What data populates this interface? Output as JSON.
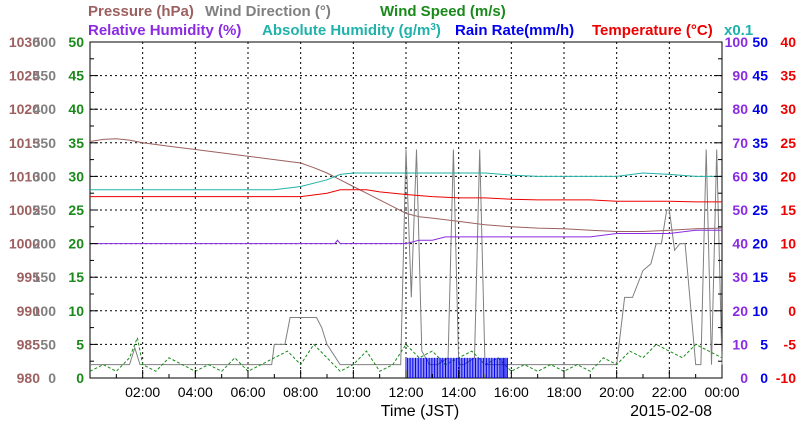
{
  "chart_data": {
    "type": "line",
    "title": "",
    "xlabel": "Time (JST)",
    "date_label": "2015-02-08",
    "x_ticks": [
      "02:00",
      "04:00",
      "06:00",
      "08:00",
      "10:00",
      "12:00",
      "14:00",
      "16:00",
      "18:00",
      "20:00",
      "22:00",
      "00:00"
    ],
    "x_range_hours": [
      0,
      24
    ],
    "grid": true,
    "legend_placement": "top",
    "legend": [
      {
        "key": "pressure",
        "text": "Pressure (hPa)",
        "color": "#9c6060"
      },
      {
        "key": "wind_dir",
        "text": "Wind Direction (°)",
        "color": "#808080"
      },
      {
        "key": "wind_speed",
        "text": "Wind Speed (m/s)",
        "color": "#1a8a1a"
      },
      {
        "key": "humidity",
        "text": "Relative Humidity (%)",
        "color": "#8a2be2"
      },
      {
        "key": "abs_humidity",
        "text": "Absolute Humidity (g/m",
        "sup": "3",
        "close": ")",
        "color": "#20b2aa"
      },
      {
        "key": "rain",
        "text": "Rain Rate(mm/h)",
        "color": "#0000ee"
      },
      {
        "key": "temperature",
        "text": "Temperature (°C)",
        "color": "#ee0000"
      },
      {
        "key": "multiplier",
        "text": "x0.1",
        "color": "#20b2aa"
      }
    ],
    "axes": {
      "pressure": {
        "color": "#9c6060",
        "ticks": [
          "1030",
          "1025",
          "1020",
          "1015",
          "1010",
          "1005",
          "1000",
          "995",
          "990",
          "985",
          "980"
        ],
        "range": [
          980,
          1030
        ]
      },
      "wind_dir": {
        "color": "#808080",
        "ticks": [
          "500",
          "450",
          "400",
          "350",
          "300",
          "250",
          "200",
          "150",
          "100",
          "50",
          "0"
        ],
        "range": [
          0,
          500
        ]
      },
      "wind_speed": {
        "color": "#1a8a1a",
        "ticks": [
          "50",
          "45",
          "40",
          "35",
          "30",
          "25",
          "20",
          "15",
          "10",
          "5",
          "0"
        ],
        "range": [
          0,
          50
        ]
      },
      "humidity": {
        "color": "#8a2be2",
        "ticks": [
          "100",
          "90",
          "80",
          "70",
          "60",
          "50",
          "40",
          "30",
          "20",
          "10",
          "0"
        ],
        "range": [
          0,
          100
        ]
      },
      "rain": {
        "color": "#0000ee",
        "ticks": [
          "50",
          "45",
          "40",
          "35",
          "30",
          "25",
          "20",
          "15",
          "10",
          "5",
          "0"
        ],
        "range": [
          0,
          50
        ]
      },
      "temperature": {
        "color": "#ee0000",
        "ticks": [
          "40",
          "35",
          "30",
          "25",
          "20",
          "15",
          "10",
          "5",
          "0",
          "-5",
          "-10"
        ],
        "range": [
          -10,
          40
        ]
      }
    },
    "series": [
      {
        "name": "Pressure (hPa)",
        "axis": "pressure",
        "color": "#9c6060",
        "x": [
          0,
          0.5,
          1,
          1.5,
          2,
          3,
          4,
          5,
          6,
          7,
          8,
          8.5,
          9,
          9.5,
          10,
          10.5,
          11,
          11.5,
          12,
          12.5,
          13,
          14,
          15,
          16,
          17,
          18,
          19,
          20,
          21,
          22,
          23,
          24
        ],
        "y": [
          1015.2,
          1015.5,
          1015.6,
          1015.4,
          1015.0,
          1014.5,
          1014.0,
          1013.5,
          1013.0,
          1012.5,
          1012.0,
          1011.3,
          1010.5,
          1009.5,
          1008.5,
          1007.5,
          1006.5,
          1005.5,
          1004.5,
          1004.0,
          1003.8,
          1003.3,
          1002.8,
          1002.5,
          1002.3,
          1002.2,
          1002.0,
          1001.8,
          1001.8,
          1002.0,
          1002.2,
          1002.3
        ]
      },
      {
        "name": "Wind Direction (°)",
        "axis": "wind_dir",
        "color": "#808080",
        "x": [
          0,
          1.5,
          1.7,
          1.9,
          2.0,
          3.0,
          4.0,
          5.0,
          6.0,
          6.9,
          7.0,
          7.4,
          7.6,
          8.6,
          8.8,
          9.0,
          9.5,
          10.0,
          11.0,
          11.8,
          12.0,
          12.2,
          12.4,
          12.6,
          12.9,
          13.0,
          13.2,
          13.6,
          13.8,
          14.0,
          14.2,
          14.6,
          14.8,
          15.0,
          15.2,
          15.6,
          16.0,
          17.0,
          18.0,
          19.0,
          19.5,
          19.8,
          20.0,
          20.3,
          20.6,
          21.0,
          21.3,
          21.5,
          21.7,
          21.9,
          22.0,
          22.2,
          22.4,
          22.6,
          23.0,
          23.2,
          23.4,
          23.6,
          23.8,
          24.0
        ],
        "y": [
          20,
          20,
          45,
          20,
          20,
          20,
          20,
          20,
          20,
          20,
          50,
          50,
          90,
          90,
          75,
          50,
          20,
          20,
          20,
          20,
          340,
          120,
          340,
          40,
          20,
          20,
          20,
          30,
          340,
          20,
          20,
          30,
          340,
          20,
          20,
          20,
          20,
          20,
          20,
          20,
          20,
          20,
          20,
          120,
          120,
          160,
          170,
          200,
          200,
          250,
          250,
          190,
          200,
          200,
          20,
          20,
          340,
          20,
          340,
          20
        ]
      },
      {
        "name": "Wind Speed (m/s)",
        "axis": "wind_speed",
        "color": "#1a8a1a",
        "x": [
          0,
          0.5,
          1,
          1.5,
          1.8,
          2,
          2.5,
          3,
          3.5,
          4,
          4.5,
          5,
          5.5,
          6,
          6.5,
          7,
          7.5,
          8,
          8.5,
          9,
          9.5,
          10,
          10.5,
          11,
          11.5,
          12,
          12.5,
          13,
          13.5,
          14,
          14.5,
          15,
          15.5,
          16,
          16.5,
          17,
          17.5,
          18,
          18.5,
          19,
          19.5,
          20,
          20.5,
          21,
          21.5,
          22,
          22.5,
          23,
          23.5,
          24
        ],
        "y": [
          1,
          2,
          1,
          3,
          6,
          2,
          1,
          3,
          2,
          1,
          2,
          1,
          3,
          1,
          2,
          3,
          4,
          2,
          5,
          3,
          1,
          2,
          4,
          1,
          2,
          5,
          3,
          4,
          2,
          3,
          4,
          2,
          3,
          1,
          2,
          1,
          2,
          1,
          2,
          1,
          3,
          2,
          4,
          3,
          5,
          4,
          3,
          5,
          4,
          3
        ]
      },
      {
        "name": "Relative Humidity (%)",
        "axis": "humidity",
        "color": "#8a2be2",
        "x": [
          0,
          2,
          4,
          6,
          8,
          9.3,
          9.4,
          9.5,
          10,
          11,
          12,
          12.5,
          13,
          13.5,
          14,
          15,
          16,
          17,
          18,
          19,
          20,
          21,
          22,
          23,
          24
        ],
        "y": [
          40,
          40,
          40,
          40,
          40,
          40,
          41,
          40,
          40,
          40,
          40,
          41,
          41,
          42,
          42,
          42,
          42,
          42,
          42,
          42,
          43,
          43,
          43,
          44,
          44
        ]
      },
      {
        "name": "Absolute Humidity (g/m3)",
        "axis": "abs_humidity_on_wind_speed",
        "color": "#20b2aa",
        "x": [
          0,
          1,
          2,
          3,
          4,
          5,
          6,
          7,
          8,
          9,
          9.5,
          10,
          11,
          12,
          13,
          14,
          15,
          16,
          17,
          18,
          19,
          20,
          21,
          22,
          23,
          24
        ],
        "y": [
          28,
          28,
          28,
          28,
          28,
          28,
          28,
          28,
          28.5,
          29.5,
          30.3,
          30.5,
          30.5,
          30.5,
          30.5,
          30.5,
          30.5,
          30.2,
          30,
          30,
          30,
          30,
          30.5,
          30.3,
          30,
          30
        ]
      },
      {
        "name": "Rain Rate(mm/h)",
        "axis": "rain",
        "color": "#0000ee",
        "x": [
          0,
          11.8,
          11.9,
          12.0,
          12.3,
          12.6,
          12.9,
          13.2,
          13.5,
          13.8,
          14.1,
          14.4,
          14.7,
          15.0,
          15.3,
          15.6,
          15.8,
          15.9,
          24
        ],
        "y": [
          0,
          0,
          0,
          3,
          3,
          3,
          3,
          3,
          3,
          3,
          3,
          3,
          3,
          3,
          3,
          3,
          3,
          0,
          0
        ]
      },
      {
        "name": "Temperature (°C)",
        "axis": "temperature",
        "color": "#ee0000",
        "x": [
          0,
          1,
          2,
          3,
          4,
          5,
          6,
          7,
          8,
          9,
          9.5,
          10,
          10.5,
          11,
          12,
          13,
          14,
          15,
          16,
          17,
          18,
          19,
          20,
          21,
          22,
          23,
          24
        ],
        "y": [
          17,
          17,
          17,
          17,
          17,
          17,
          17,
          17,
          17,
          17.5,
          18,
          18,
          18,
          17.7,
          17.3,
          17,
          16.8,
          16.8,
          16.6,
          16.5,
          16.5,
          16.5,
          16.3,
          16.3,
          16.3,
          16.2,
          16.2
        ]
      }
    ]
  }
}
